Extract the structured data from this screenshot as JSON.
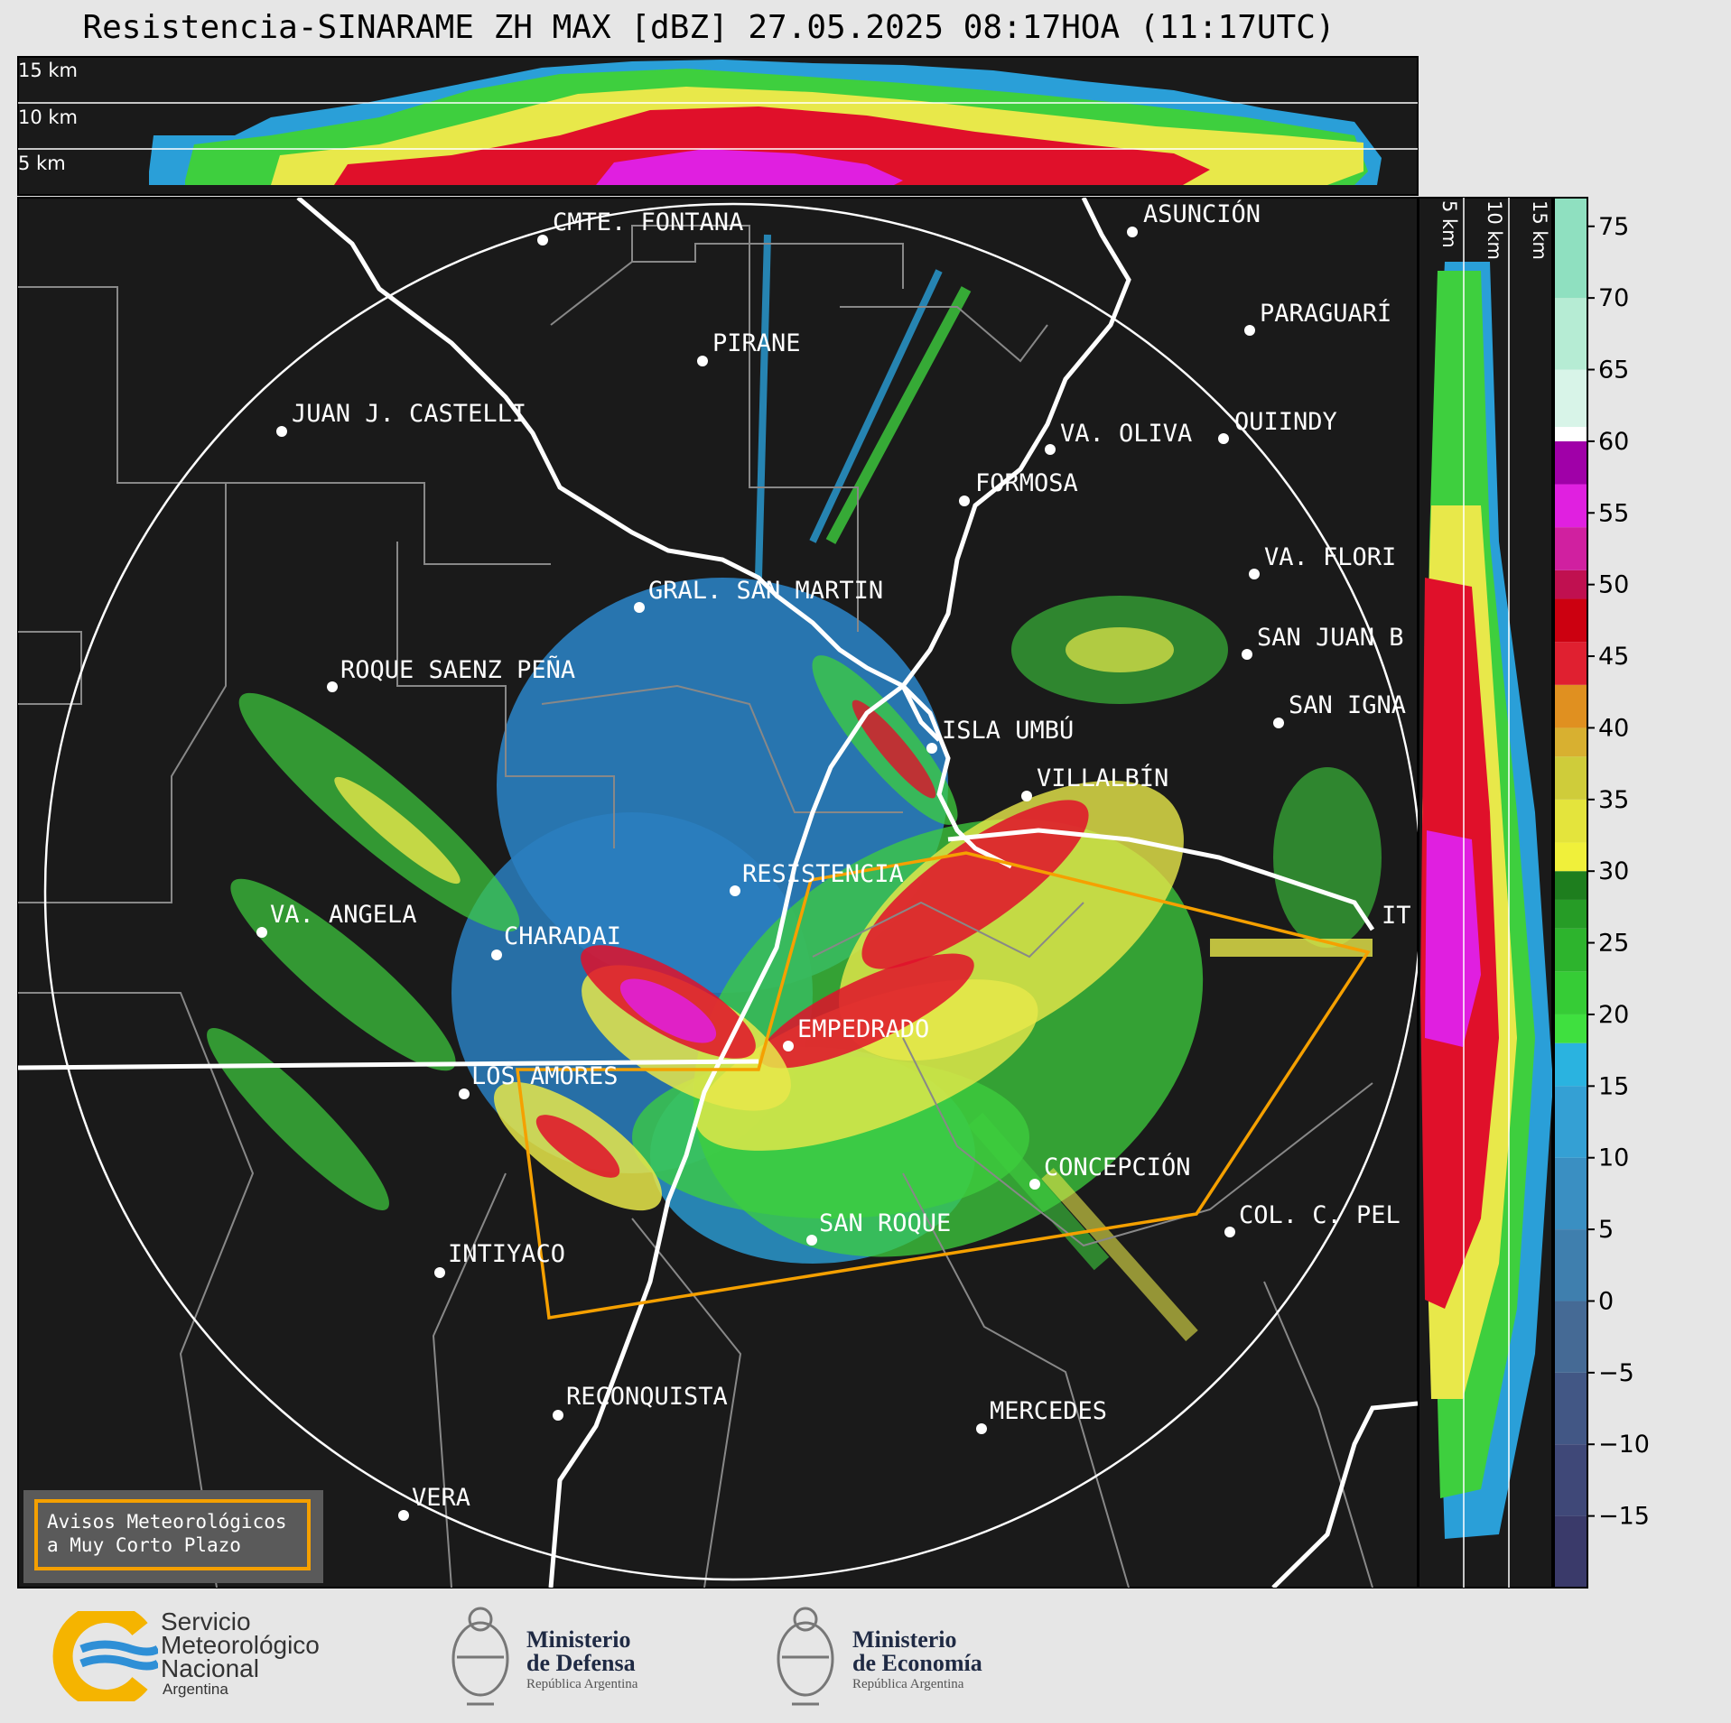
{
  "title": "Resistencia-SINARAME ZH MAX [dBZ] 27.05.2025 08:17HOA (11:17UTC)",
  "top_panel": {
    "labels": [
      "15 km",
      "10 km",
      "5 km"
    ]
  },
  "side_panel": {
    "labels": [
      "5 km",
      "10 km",
      "15 km"
    ]
  },
  "colorbar": {
    "ticks": [
      "75",
      "70",
      "65",
      "60",
      "55",
      "50",
      "45",
      "40",
      "35",
      "30",
      "25",
      "20",
      "15",
      "10",
      "5",
      "0",
      "−5",
      "−10",
      "−15"
    ],
    "range": [
      -20,
      77
    ],
    "unit": "dBZ"
  },
  "cities": [
    {
      "name": "CMTE. FONTANA"
    },
    {
      "name": "PIRANE"
    },
    {
      "name": "ASUNCIÓN"
    },
    {
      "name": "PARAGUARÍ"
    },
    {
      "name": "JUAN J. CASTELLI"
    },
    {
      "name": "VA. OLIVA"
    },
    {
      "name": "QUIINDY"
    },
    {
      "name": "FORMOSA"
    },
    {
      "name": "VA. FLORI"
    },
    {
      "name": "GRAL. SAN MARTIN"
    },
    {
      "name": "SAN JUAN B"
    },
    {
      "name": "ROQUE SAENZ PEÑA"
    },
    {
      "name": "SAN IGNA"
    },
    {
      "name": "ISLA UMBÚ"
    },
    {
      "name": "VILLALBÍN"
    },
    {
      "name": "RESISTENCIA"
    },
    {
      "name": "VA. ANGELA"
    },
    {
      "name": "CHARADAI"
    },
    {
      "name": "IT"
    },
    {
      "name": "EMPEDRADO"
    },
    {
      "name": "LOS AMORES"
    },
    {
      "name": "CONCEPCIÓN"
    },
    {
      "name": "SAN ROQUE"
    },
    {
      "name": "COL. C. PEL"
    },
    {
      "name": "INTIYACO"
    },
    {
      "name": "RECONQUISTA"
    },
    {
      "name": "MERCEDES"
    },
    {
      "name": "VERA"
    }
  ],
  "warning_box": {
    "line1": "Avisos Meteorológicos",
    "line2": "a Muy Corto Plazo"
  },
  "footer": {
    "smn": {
      "line1": "Servicio",
      "line2": "Meteorológico",
      "line3": "Nacional",
      "line4": "Argentina"
    },
    "defensa": {
      "line1": "Ministerio",
      "line2": "de Defensa",
      "line3": "República Argentina"
    },
    "economia": {
      "line1": "Ministerio",
      "line2": "de Economía",
      "line3": "República Argentina"
    }
  }
}
